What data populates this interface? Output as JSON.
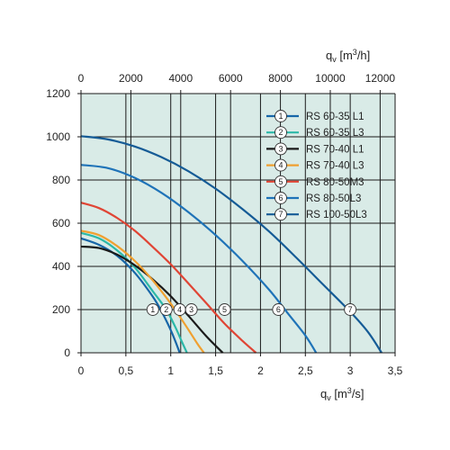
{
  "chart_data": {
    "type": "line",
    "x_bottom": {
      "unit": "q",
      "unit_sub": "v",
      "unit_rest_open": " [m",
      "unit_sup": "3",
      "unit_rest_close": "/s]",
      "range": [
        0,
        3.5
      ],
      "ticks": [
        0,
        0.5,
        1,
        1.5,
        2,
        2.5,
        3,
        3.5
      ],
      "tick_labels": [
        "0",
        "0,5",
        "1",
        "1,5",
        "2",
        "2,5",
        "3",
        "3,5"
      ]
    },
    "x_top": {
      "unit": "q",
      "unit_sub": "v",
      "unit_rest_open": " [m",
      "unit_sup": "3",
      "unit_rest_close": "/h]",
      "range": [
        0,
        12600
      ],
      "ticks": [
        0,
        2000,
        4000,
        6000,
        8000,
        10000,
        12000
      ],
      "tick_labels": [
        "0",
        "2000",
        "4000",
        "6000",
        "8000",
        "10000",
        "12000"
      ]
    },
    "y": {
      "range": [
        0,
        1200
      ],
      "ticks": [
        0,
        200,
        400,
        600,
        800,
        1000,
        1200
      ],
      "tick_labels": [
        "0",
        "200",
        "400",
        "600",
        "800",
        "1000",
        "1200"
      ]
    },
    "grid": true,
    "legend_position": "top-right",
    "background_color": "#d9ebe7",
    "marker_level": 200,
    "series": [
      {
        "id": "1",
        "name": "RS 60-35 L1",
        "color": "#1766a8",
        "points": [
          [
            0,
            530
          ],
          [
            0.2,
            500
          ],
          [
            0.4,
            450
          ],
          [
            0.6,
            370
          ],
          [
            0.8,
            260
          ],
          [
            0.9,
            190
          ],
          [
            1.0,
            105
          ],
          [
            1.05,
            55
          ],
          [
            1.1,
            0
          ]
        ]
      },
      {
        "id": "2",
        "name": "RS 60-35 L3",
        "color": "#2bb8a8",
        "points": [
          [
            0,
            555
          ],
          [
            0.2,
            530
          ],
          [
            0.4,
            475
          ],
          [
            0.6,
            395
          ],
          [
            0.8,
            285
          ],
          [
            0.95,
            200
          ],
          [
            1.05,
            120
          ],
          [
            1.12,
            55
          ],
          [
            1.18,
            0
          ]
        ]
      },
      {
        "id": "3",
        "name": "RS 70-40 L1",
        "color": "#1a1a1a",
        "points": [
          [
            0,
            492
          ],
          [
            0.2,
            485
          ],
          [
            0.4,
            455
          ],
          [
            0.6,
            405
          ],
          [
            0.8,
            340
          ],
          [
            1.0,
            262
          ],
          [
            1.2,
            170
          ],
          [
            1.4,
            75
          ],
          [
            1.58,
            0
          ]
        ]
      },
      {
        "id": "4",
        "name": "RS 70-40 L3",
        "color": "#f0a030",
        "points": [
          [
            0,
            565
          ],
          [
            0.2,
            545
          ],
          [
            0.4,
            495
          ],
          [
            0.6,
            425
          ],
          [
            0.8,
            335
          ],
          [
            1.0,
            228
          ],
          [
            1.1,
            168
          ],
          [
            1.2,
            105
          ],
          [
            1.3,
            40
          ],
          [
            1.37,
            0
          ]
        ]
      },
      {
        "id": "5",
        "name": "RS 80-50M3",
        "color": "#e04535",
        "points": [
          [
            0,
            695
          ],
          [
            0.2,
            670
          ],
          [
            0.4,
            625
          ],
          [
            0.6,
            565
          ],
          [
            0.8,
            490
          ],
          [
            1.0,
            410
          ],
          [
            1.2,
            320
          ],
          [
            1.4,
            228
          ],
          [
            1.6,
            135
          ],
          [
            1.8,
            55
          ],
          [
            1.95,
            0
          ]
        ]
      },
      {
        "id": "6",
        "name": "RS 80-50L3",
        "color": "#1f73b8",
        "points": [
          [
            0,
            870
          ],
          [
            0.3,
            855
          ],
          [
            0.6,
            810
          ],
          [
            0.9,
            740
          ],
          [
            1.2,
            650
          ],
          [
            1.5,
            545
          ],
          [
            1.8,
            425
          ],
          [
            2.1,
            290
          ],
          [
            2.3,
            185
          ],
          [
            2.5,
            80
          ],
          [
            2.62,
            0
          ]
        ]
      },
      {
        "id": "7",
        "name": "RS 100-50L3",
        "color": "#155b96",
        "points": [
          [
            0,
            1003
          ],
          [
            0.3,
            988
          ],
          [
            0.6,
            955
          ],
          [
            0.9,
            905
          ],
          [
            1.2,
            840
          ],
          [
            1.5,
            760
          ],
          [
            1.8,
            665
          ],
          [
            2.1,
            560
          ],
          [
            2.4,
            440
          ],
          [
            2.7,
            315
          ],
          [
            3.0,
            190
          ],
          [
            3.2,
            95
          ],
          [
            3.35,
            0
          ]
        ]
      }
    ],
    "markers": [
      {
        "label": "1",
        "x": 0.8
      },
      {
        "label": "2",
        "x": 0.95
      },
      {
        "label": "4",
        "x": 1.1
      },
      {
        "label": "3",
        "x": 1.23
      },
      {
        "label": "5",
        "x": 1.6
      },
      {
        "label": "6",
        "x": 2.2
      },
      {
        "label": "7",
        "x": 3.0
      }
    ]
  }
}
